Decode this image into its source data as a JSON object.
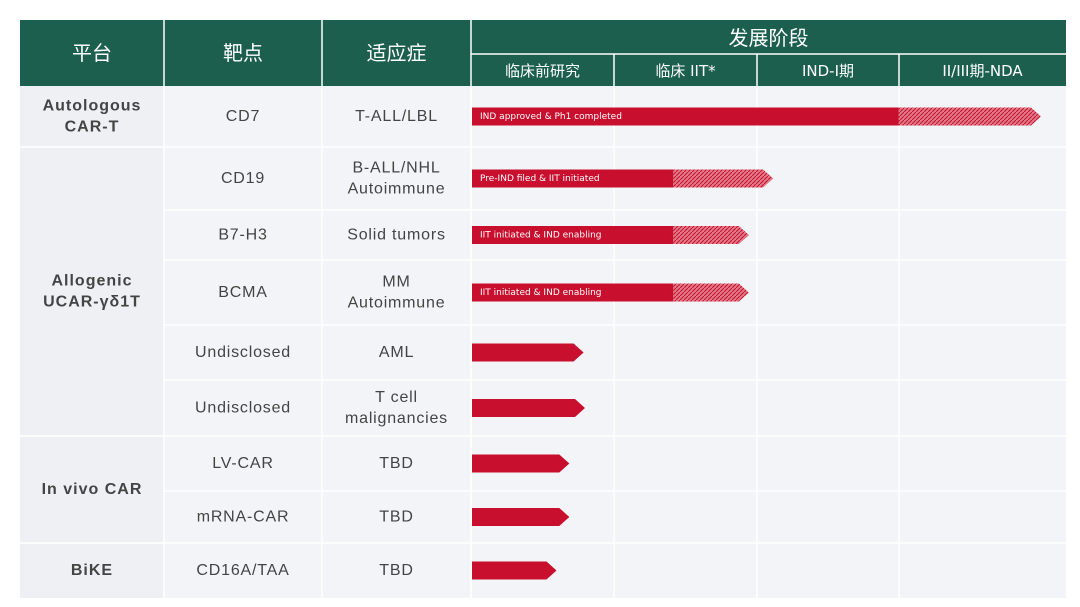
{
  "header": {
    "platform": "平台",
    "target": "靶点",
    "indication": "适应症",
    "stage_group": "发展阶段",
    "stages": [
      "临床前研究",
      "临床 IIT*",
      "IND-I期",
      "II/III期-NDA"
    ]
  },
  "platforms": [
    {
      "lines": [
        "Autologous",
        "CAR-T"
      ],
      "rows": 1
    },
    {
      "lines": [
        "Allogenic",
        "UCAR-γδ1T"
      ],
      "rows": 5
    },
    {
      "lines": [
        "In vivo CAR"
      ],
      "rows": 2
    },
    {
      "lines": [
        "BiKE"
      ],
      "rows": 1
    }
  ],
  "rows": [
    {
      "target": "CD7",
      "indication": [
        "T-ALL/LBL"
      ],
      "bar_label": "IND approved & Ph1 completed",
      "solid_end": 3.0,
      "hatch_end": 4.0
    },
    {
      "target": "CD19",
      "indication": [
        "B-ALL/NHL",
        "Autoimmune"
      ],
      "bar_label": "Pre-IND filed & IIT initiated",
      "solid_end": 1.42,
      "hatch_end": 2.12
    },
    {
      "target": "B7-H3",
      "indication": [
        "Solid tumors"
      ],
      "bar_label": "IIT initiated & IND enabling",
      "solid_end": 1.42,
      "hatch_end": 1.95
    },
    {
      "target": "BCMA",
      "indication": [
        "MM",
        "Autoimmune"
      ],
      "bar_label": "IIT initiated & IND enabling",
      "solid_end": 1.42,
      "hatch_end": 1.95
    },
    {
      "target": "Undisclosed",
      "indication": [
        "AML"
      ],
      "bar_label": "",
      "solid_end": 0.79,
      "hatch_end": 0.79
    },
    {
      "target": "Undisclosed",
      "indication": [
        "T cell",
        "malignancies"
      ],
      "bar_label": "",
      "solid_end": 0.8,
      "hatch_end": 0.8
    },
    {
      "target": "LV-CAR",
      "indication": [
        "TBD"
      ],
      "bar_label": "",
      "solid_end": 0.69,
      "hatch_end": 0.69
    },
    {
      "target": "mRNA-CAR",
      "indication": [
        "TBD"
      ],
      "bar_label": "",
      "solid_end": 0.69,
      "hatch_end": 0.69
    },
    {
      "target": "CD16A/TAA",
      "indication": [
        "TBD"
      ],
      "bar_label": "",
      "solid_end": 0.6,
      "hatch_end": 0.6
    }
  ],
  "colors": {
    "header_bg": "#1c5f4f",
    "platform_bg": "#eef0f4",
    "row_bg": "#f3f4f7",
    "grid": "#ffffff",
    "bar": "#c8102e",
    "bar_hatch": "#e88a97"
  }
}
